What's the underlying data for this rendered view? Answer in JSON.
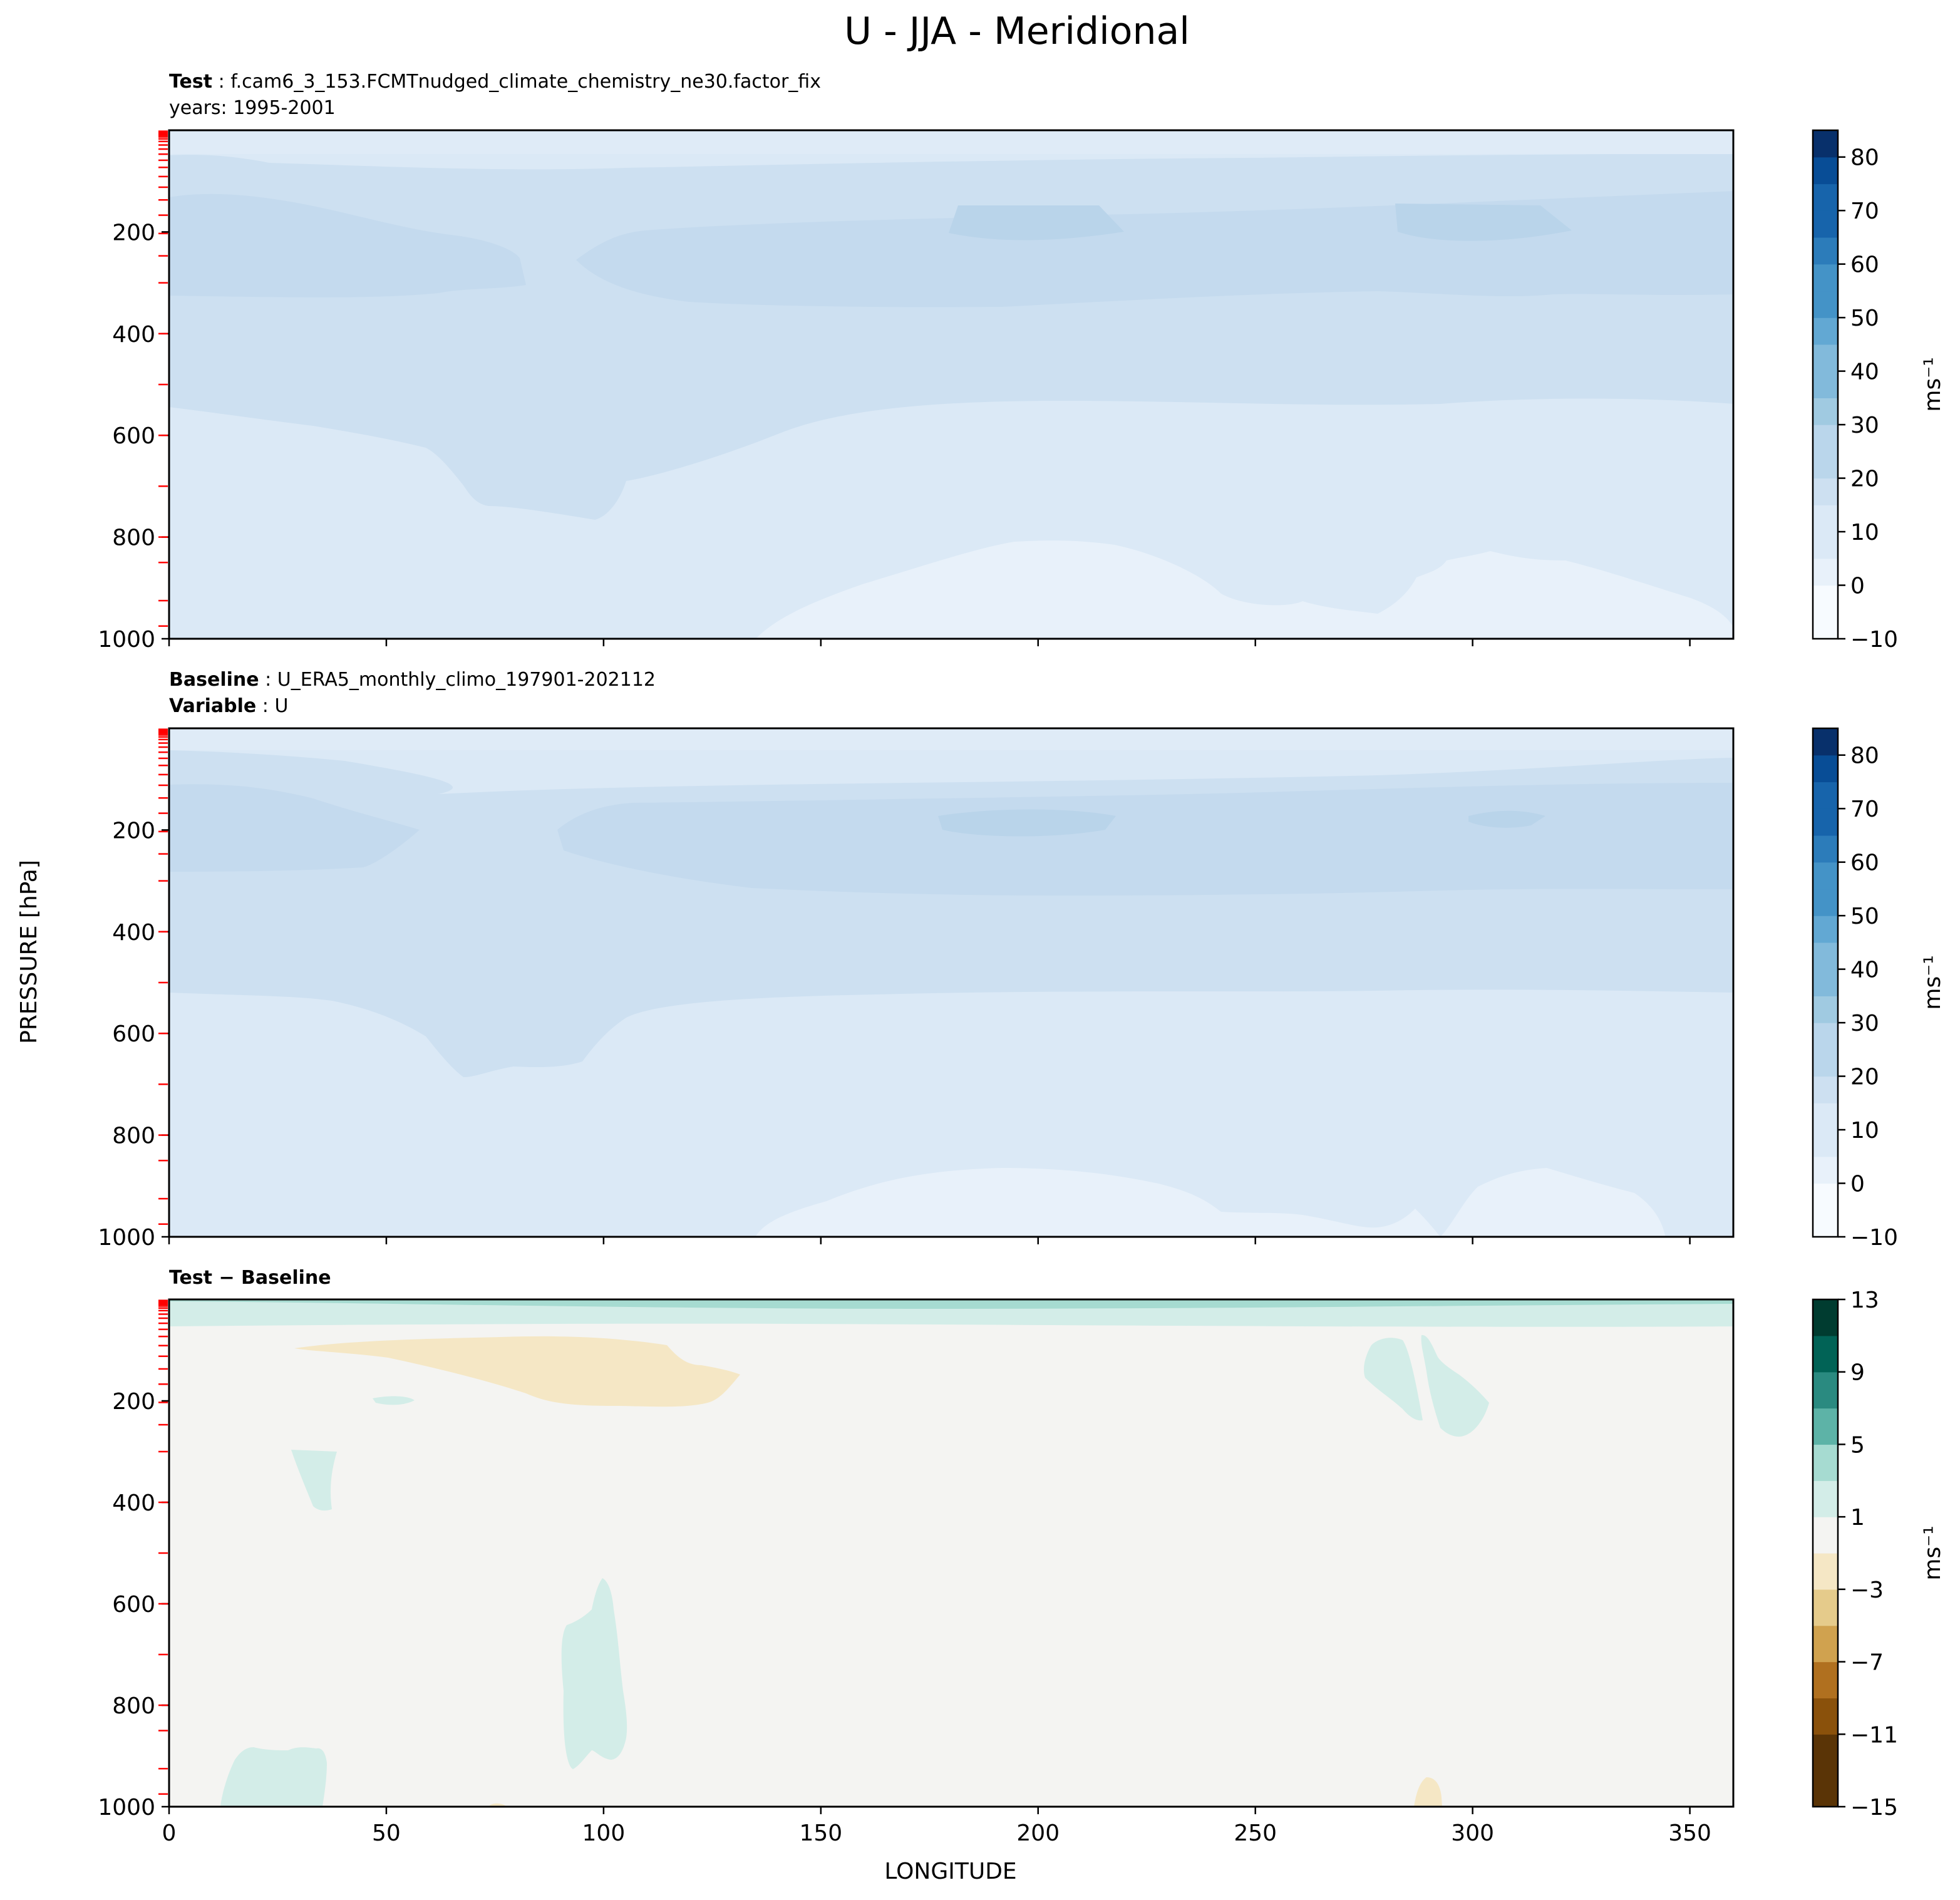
{
  "figure": {
    "title": "U - JJA - Meridional",
    "ylabel": "PRESSURE [hPa]",
    "xlabel": "LONGITUDE",
    "x_ticks": [
      "0",
      "50",
      "100",
      "150",
      "200",
      "250",
      "300",
      "350"
    ],
    "y_ticks": [
      "200",
      "400",
      "600",
      "800",
      "1000"
    ],
    "panels": [
      {
        "id": "test",
        "label_bold": "Test",
        "label_text": "f.cam6_3_153.FCMTnudged_climate_chemistry_ne30.factor_fix",
        "line2_bold": "",
        "line2_text": "years: 1995-2001"
      },
      {
        "id": "baseline",
        "label_bold": "Baseline",
        "label_text": "U_ERA5_monthly_climo_197901-202112",
        "line2_bold": "Variable",
        "line2_text": "U"
      },
      {
        "id": "diff",
        "label_bold": "Test − Baseline",
        "label_text": "",
        "line2_bold": "",
        "line2_text": ""
      }
    ],
    "colorbars": [
      {
        "label": "ms⁻¹",
        "ticks": [
          "80",
          "70",
          "60",
          "50",
          "40",
          "30",
          "20",
          "10",
          "0",
          "−10"
        ]
      },
      {
        "label": "ms⁻¹",
        "ticks": [
          "80",
          "70",
          "60",
          "50",
          "40",
          "30",
          "20",
          "10",
          "0",
          "−10"
        ]
      },
      {
        "label": "ms⁻¹",
        "ticks": [
          "13",
          "9",
          "5",
          "1",
          "−3",
          "−7",
          "−11",
          "−15"
        ]
      }
    ],
    "colors": {
      "blue_levels": [
        "#f7fbff",
        "#e8f1fa",
        "#dbe9f6",
        "#cde0f1",
        "#bad6eb",
        "#a0cae1",
        "#82badb",
        "#62a8d3",
        "#4493c7",
        "#2c7cba",
        "#1764ab",
        "#084d96",
        "#08306b"
      ],
      "diff_levels": [
        "#5a3406",
        "#8a510b",
        "#b0701f",
        "#d0a24f",
        "#e5cb8b",
        "#f5e7c5",
        "#f4f4f2",
        "#d3ede8",
        "#a6dbd1",
        "#5db3a7",
        "#2a8a80",
        "#016356",
        "#003c30"
      ],
      "pressure_tick_color": "#ff0000"
    }
  },
  "chart_data": [
    {
      "type": "heatmap",
      "subtype": "filled-contour",
      "panel": "Test",
      "xlabel": "LONGITUDE",
      "ylabel": "PRESSURE [hPa]",
      "xlim": [
        0,
        360
      ],
      "ylim": [
        1000,
        0
      ],
      "units": "ms⁻¹",
      "levels": [
        -10,
        -5,
        0,
        5,
        10,
        15,
        20,
        25,
        30,
        35,
        40,
        45,
        50,
        55,
        60,
        65,
        70,
        75,
        80,
        85
      ],
      "features": [
        {
          "region": "upper troposphere jet",
          "lon": [
            0,
            360
          ],
          "pressure_hPa": [
            130,
            320
          ],
          "value_range": [
            10,
            15
          ]
        },
        {
          "region": "jet core",
          "lon": [
            180,
            220
          ],
          "pressure_hPa": [
            150,
            210
          ],
          "value_range": [
            15,
            20
          ]
        },
        {
          "region": "jet core",
          "lon": [
            282,
            322
          ],
          "pressure_hPa": [
            150,
            215
          ],
          "value_range": [
            15,
            20
          ]
        },
        {
          "region": "surface easterlies",
          "lon": [
            135,
            360
          ],
          "pressure_hPa": [
            800,
            1000
          ],
          "value_range": [
            -5,
            0
          ]
        }
      ]
    },
    {
      "type": "heatmap",
      "subtype": "filled-contour",
      "panel": "Baseline",
      "xlabel": "LONGITUDE",
      "ylabel": "PRESSURE [hPa]",
      "xlim": [
        0,
        360
      ],
      "ylim": [
        1000,
        0
      ],
      "units": "ms⁻¹",
      "levels": [
        -10,
        -5,
        0,
        5,
        10,
        15,
        20,
        25,
        30,
        35,
        40,
        45,
        50,
        55,
        60,
        65,
        70,
        75,
        80,
        85
      ],
      "features": [
        {
          "region": "upper troposphere jet",
          "lon": [
            0,
            360
          ],
          "pressure_hPa": [
            110,
            320
          ],
          "value_range": [
            10,
            15
          ]
        },
        {
          "region": "jet core",
          "lon": [
            177,
            218
          ],
          "pressure_hPa": [
            160,
            210
          ],
          "value_range": [
            15,
            20
          ]
        },
        {
          "region": "jet core",
          "lon": [
            298,
            315
          ],
          "pressure_hPa": [
            165,
            190
          ],
          "value_range": [
            15,
            20
          ]
        },
        {
          "region": "surface easterlies",
          "lon": [
            135,
            345
          ],
          "pressure_hPa": [
            830,
            1000
          ],
          "value_range": [
            -5,
            0
          ]
        }
      ]
    },
    {
      "type": "heatmap",
      "subtype": "filled-contour",
      "panel": "Test − Baseline",
      "xlabel": "LONGITUDE",
      "ylabel": "PRESSURE [hPa]",
      "xlim": [
        0,
        360
      ],
      "ylim": [
        1000,
        0
      ],
      "units": "ms⁻¹",
      "levels": [
        -15,
        -13,
        -11,
        -9,
        -7,
        -5,
        -3,
        -1,
        1,
        3,
        5,
        7,
        9,
        11,
        13
      ],
      "features": [
        {
          "region": "model top positive band",
          "lon": [
            0,
            360
          ],
          "pressure_hPa": [
            0,
            50
          ],
          "value_range": [
            1,
            5
          ]
        },
        {
          "region": "negative upper band",
          "lon": [
            30,
            132
          ],
          "pressure_hPa": [
            80,
            210
          ],
          "value_range": [
            -3,
            -1
          ]
        },
        {
          "region": "positive upper band",
          "lon": [
            275,
            303
          ],
          "pressure_hPa": [
            80,
            265
          ],
          "value_range": [
            1,
            3
          ]
        },
        {
          "region": "positive midlevel",
          "lon": [
            90,
            106
          ],
          "pressure_hPa": [
            620,
            920
          ],
          "value_range": [
            1,
            3
          ]
        },
        {
          "region": "positive low level",
          "lon": [
            13,
            37
          ],
          "pressure_hPa": [
            910,
            1000
          ],
          "value_range": [
            1,
            3
          ]
        },
        {
          "region": "positive",
          "lon": [
            28,
            39
          ],
          "pressure_hPa": [
            290,
            395
          ],
          "value_range": [
            1,
            3
          ]
        }
      ]
    }
  ]
}
